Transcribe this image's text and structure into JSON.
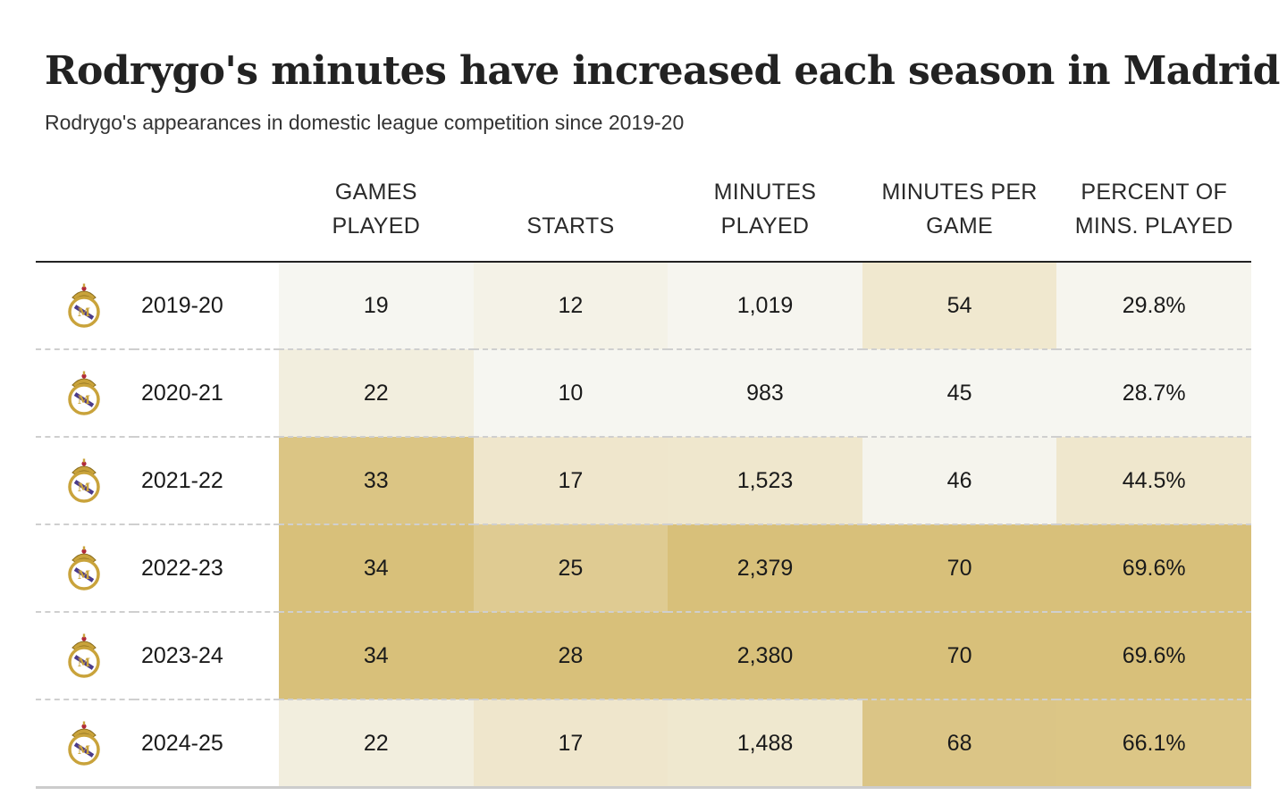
{
  "title": "Rodrygo's minutes have increased each season in Madrid",
  "subtitle": "Rodrygo's appearances in domestic league competition since 2019-20",
  "columns": {
    "games": [
      "GAMES",
      "PLAYED"
    ],
    "starts": [
      "STARTS"
    ],
    "minutes": [
      "MINUTES",
      "PLAYED"
    ],
    "mpg": [
      "MINUTES PER",
      "GAME"
    ],
    "pct": [
      "PERCENT OF",
      "MINS. PLAYED"
    ]
  },
  "icons": {
    "crest": "real-madrid-crest-icon"
  },
  "colors": {
    "scale_low": "#f6f6f1",
    "scale_mid": "#ede2c2",
    "scale_high": "#d8c07a",
    "header_rule": "#222222",
    "row_divider": "#cfcfcf"
  },
  "chart_data": {
    "type": "table",
    "title": "Rodrygo's minutes have increased each season in Madrid",
    "subtitle": "Rodrygo's appearances in domestic league competition since 2019-20",
    "column_keys": [
      "games",
      "starts",
      "minutes",
      "mpg",
      "pct"
    ],
    "rows": [
      {
        "season": "2019-20",
        "games": "19",
        "starts": "12",
        "minutes": "1,019",
        "mpg": "54",
        "pct": "29.8%",
        "values": {
          "games": 19,
          "starts": 12,
          "minutes": 1019,
          "mpg": 54,
          "pct": 29.8
        }
      },
      {
        "season": "2020-21",
        "games": "22",
        "starts": "10",
        "minutes": "983",
        "mpg": "45",
        "pct": "28.7%",
        "values": {
          "games": 22,
          "starts": 10,
          "minutes": 983,
          "mpg": 45,
          "pct": 28.7
        }
      },
      {
        "season": "2021-22",
        "games": "33",
        "starts": "17",
        "minutes": "1,523",
        "mpg": "46",
        "pct": "44.5%",
        "values": {
          "games": 33,
          "starts": 17,
          "minutes": 1523,
          "mpg": 46,
          "pct": 44.5
        }
      },
      {
        "season": "2022-23",
        "games": "34",
        "starts": "25",
        "minutes": "2,379",
        "mpg": "70",
        "pct": "69.6%",
        "values": {
          "games": 34,
          "starts": 25,
          "minutes": 2379,
          "mpg": 70,
          "pct": 69.6
        }
      },
      {
        "season": "2023-24",
        "games": "34",
        "starts": "28",
        "minutes": "2,380",
        "mpg": "70",
        "pct": "69.6%",
        "values": {
          "games": 34,
          "starts": 28,
          "minutes": 2380,
          "mpg": 70,
          "pct": 69.6
        }
      },
      {
        "season": "2024-25",
        "games": "22",
        "starts": "17",
        "minutes": "1,488",
        "mpg": "68",
        "pct": "66.1%",
        "values": {
          "games": 22,
          "starts": 17,
          "minutes": 1488,
          "mpg": 68,
          "pct": 66.1
        }
      }
    ]
  }
}
